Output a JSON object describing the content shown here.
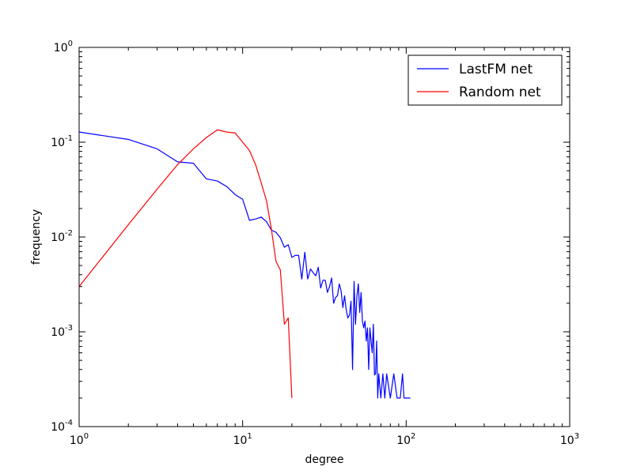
{
  "chart_data": {
    "type": "line",
    "xlabel": "degree",
    "ylabel": "frequency",
    "xscale": "log",
    "yscale": "log",
    "xlim": [
      1,
      1000
    ],
    "ylim": [
      0.0001,
      1
    ],
    "grid": false,
    "legend_position": "top-right",
    "x_ticks": [
      {
        "value": 1,
        "base": "10",
        "exp": "0"
      },
      {
        "value": 10,
        "base": "10",
        "exp": "1"
      },
      {
        "value": 100,
        "base": "10",
        "exp": "2"
      },
      {
        "value": 1000,
        "base": "10",
        "exp": "3"
      }
    ],
    "y_ticks": [
      {
        "value": 0.0001,
        "base": "10",
        "exp": "-4"
      },
      {
        "value": 0.001,
        "base": "10",
        "exp": "-3"
      },
      {
        "value": 0.01,
        "base": "10",
        "exp": "-2"
      },
      {
        "value": 0.1,
        "base": "10",
        "exp": "-1"
      },
      {
        "value": 1,
        "base": "10",
        "exp": "0"
      }
    ],
    "series": [
      {
        "name": "LastFM net",
        "color": "#0000ff",
        "points": [
          [
            1,
            0.128
          ],
          [
            2,
            0.107
          ],
          [
            3,
            0.085
          ],
          [
            4,
            0.062
          ],
          [
            5,
            0.06
          ],
          [
            6,
            0.041
          ],
          [
            7,
            0.039
          ],
          [
            8,
            0.034
          ],
          [
            9,
            0.028
          ],
          [
            10,
            0.025
          ],
          [
            11,
            0.015
          ],
          [
            12,
            0.0155
          ],
          [
            13,
            0.0162
          ],
          [
            14,
            0.0145
          ],
          [
            15,
            0.0118
          ],
          [
            16,
            0.0112
          ],
          [
            17,
            0.0098
          ],
          [
            18,
            0.0078
          ],
          [
            19,
            0.0083
          ],
          [
            20,
            0.0061
          ],
          [
            21,
            0.0064
          ],
          [
            22,
            0.0064
          ],
          [
            23,
            0.0036
          ],
          [
            24,
            0.0069
          ],
          [
            25,
            0.0036
          ],
          [
            26,
            0.0046
          ],
          [
            27,
            0.0042
          ],
          [
            28,
            0.0039
          ],
          [
            29,
            0.0048
          ],
          [
            30,
            0.0029
          ],
          [
            31,
            0.0035
          ],
          [
            32,
            0.0035
          ],
          [
            33,
            0.0026
          ],
          [
            34,
            0.003
          ],
          [
            35,
            0.0037
          ],
          [
            36,
            0.002
          ],
          [
            37,
            0.0023
          ],
          [
            38,
            0.0024
          ],
          [
            39,
            0.0032
          ],
          [
            40,
            0.0027
          ],
          [
            41,
            0.0018
          ],
          [
            42,
            0.0024
          ],
          [
            43,
            0.0017
          ],
          [
            44,
            0.0014
          ],
          [
            45,
            0.0015
          ],
          [
            46,
            0.0021
          ],
          [
            47,
            0.0004
          ],
          [
            48,
            0.0034
          ],
          [
            49,
            0.0012
          ],
          [
            50,
            0.0024
          ],
          [
            51,
            0.0032
          ],
          [
            52,
            0.0016
          ],
          [
            53,
            0.0026
          ],
          [
            54,
            0.0013
          ],
          [
            55,
            0.0011
          ],
          [
            56,
            0.0013
          ],
          [
            57,
            0.0008
          ],
          [
            58,
            0.0011
          ],
          [
            59,
            0.0004
          ],
          [
            60,
            0.0011
          ],
          [
            61,
            0.0008
          ],
          [
            62,
            0.0006
          ],
          [
            63,
            0.0012
          ],
          [
            64,
            0.00035
          ],
          [
            65,
            0.00036
          ],
          [
            66,
            0.0008
          ],
          [
            67,
            0.0002
          ],
          [
            68,
            0.00036
          ],
          [
            70,
            0.0002
          ],
          [
            72,
            0.00036
          ],
          [
            74,
            0.0002
          ],
          [
            76,
            0.00036
          ],
          [
            80,
            0.0002
          ],
          [
            84,
            0.00036
          ],
          [
            88,
            0.0002
          ],
          [
            92,
            0.0002
          ],
          [
            95,
            0.00036
          ],
          [
            97,
            0.0002
          ],
          [
            100,
            0.0002
          ],
          [
            103,
            0.0002
          ],
          [
            106,
            0.0002
          ]
        ]
      },
      {
        "name": "Random net",
        "color": "#ff0000",
        "points": [
          [
            1,
            0.003
          ],
          [
            2,
            0.0135
          ],
          [
            3,
            0.032
          ],
          [
            4,
            0.058
          ],
          [
            5,
            0.085
          ],
          [
            6,
            0.112
          ],
          [
            7,
            0.135
          ],
          [
            8,
            0.128
          ],
          [
            9,
            0.125
          ],
          [
            10,
            0.1
          ],
          [
            11,
            0.082
          ],
          [
            12,
            0.058
          ],
          [
            13,
            0.037
          ],
          [
            14,
            0.024
          ],
          [
            15,
            0.012
          ],
          [
            16,
            0.0055
          ],
          [
            17,
            0.0045
          ],
          [
            18,
            0.0012
          ],
          [
            19,
            0.0014
          ],
          [
            20,
            0.0002
          ]
        ]
      }
    ]
  }
}
